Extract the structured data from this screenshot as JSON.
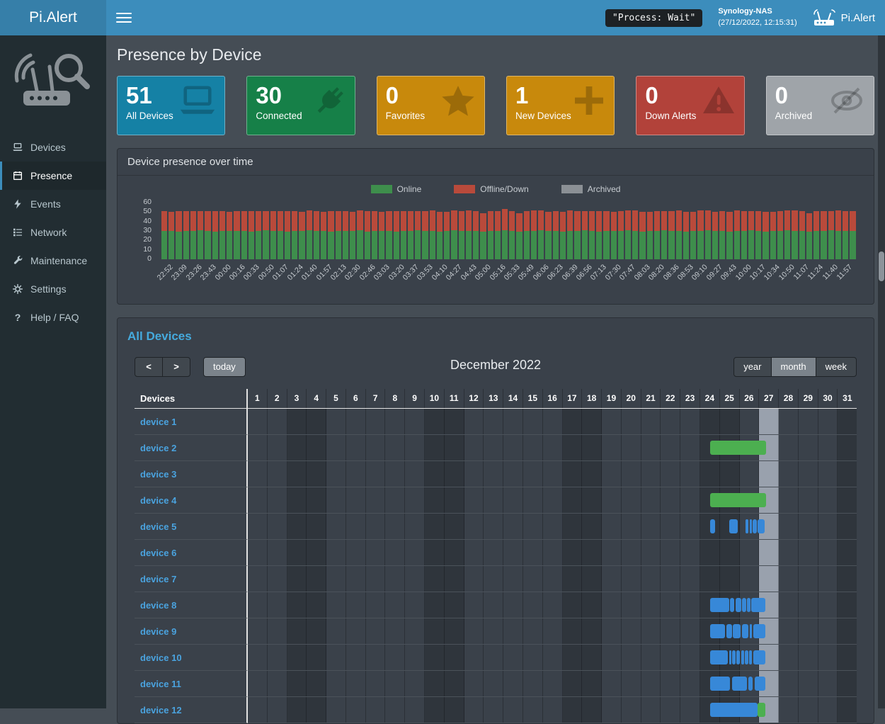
{
  "header": {
    "brand": "Pi.Alert",
    "process_status": "\"Process: Wait\"",
    "nas_name": "Synology-NAS",
    "nas_time": "(27/12/2022, 12:15:31)",
    "app_name": "Pi.Alert"
  },
  "sidebar": {
    "items": [
      {
        "label": "Devices"
      },
      {
        "label": "Presence"
      },
      {
        "label": "Events"
      },
      {
        "label": "Network"
      },
      {
        "label": "Maintenance"
      },
      {
        "label": "Settings"
      },
      {
        "label": "Help / FAQ"
      }
    ],
    "active_item": "Presence"
  },
  "page": {
    "title": "Presence by Device"
  },
  "cards": [
    {
      "value": "51",
      "label": "All Devices",
      "color": "#1581a5"
    },
    {
      "value": "30",
      "label": "Connected",
      "color": "#168048"
    },
    {
      "value": "0",
      "label": "Favorites",
      "color": "#c8890c"
    },
    {
      "value": "1",
      "label": "New Devices",
      "color": "#c8890c"
    },
    {
      "value": "0",
      "label": "Down Alerts",
      "color": "#b2423a"
    },
    {
      "value": "0",
      "label": "Archived",
      "color": "#9fa4a9"
    }
  ],
  "chart_data": {
    "type": "stacked-bar",
    "title": "Device presence over time",
    "ylim": [
      0,
      60
    ],
    "y_ticks": [
      0,
      10,
      20,
      30,
      40,
      50,
      60
    ],
    "legend": [
      {
        "name": "Online",
        "color": "#3e8e4c"
      },
      {
        "name": "Offline/Down",
        "color": "#b94a3b"
      },
      {
        "name": "Archived",
        "color": "#8b9095"
      }
    ],
    "x_labels": [
      "22:52",
      "23:09",
      "23:26",
      "23:43",
      "00:00",
      "00:16",
      "00:33",
      "00:50",
      "01:07",
      "01:24",
      "01:40",
      "01:57",
      "02:13",
      "02:30",
      "02:46",
      "03:03",
      "03:20",
      "03:37",
      "03:53",
      "04:10",
      "04:27",
      "04:43",
      "05:00",
      "05:16",
      "05:33",
      "05:49",
      "06:06",
      "06:23",
      "06:39",
      "06:56",
      "07:13",
      "07:30",
      "07:47",
      "08:03",
      "08:20",
      "08:36",
      "08:53",
      "09:10",
      "09:27",
      "09:43",
      "10:00",
      "10:17",
      "10:34",
      "10:50",
      "11:07",
      "11:24",
      "11:40",
      "11:57"
    ],
    "series": [
      {
        "name": "Online",
        "color": "#3e8e4c",
        "values": [
          30,
          30,
          29,
          30,
          30,
          31,
          30,
          29,
          30,
          30,
          30,
          30,
          29,
          30,
          31,
          30,
          30,
          29,
          30,
          30,
          31,
          30,
          30,
          29,
          30,
          30,
          30,
          31,
          29,
          30,
          30,
          30,
          29,
          30,
          30,
          31,
          30,
          30,
          29,
          30,
          31,
          30,
          30,
          30,
          29,
          30,
          30,
          31,
          30,
          29,
          30,
          30,
          31,
          30,
          30,
          29,
          30,
          30,
          31,
          30,
          29,
          30,
          30,
          30,
          31,
          30,
          29,
          30,
          30,
          31,
          30,
          30,
          29,
          30,
          30,
          31,
          30,
          30,
          29,
          30,
          30,
          31,
          30,
          29,
          30,
          30,
          31,
          30,
          30,
          29,
          30,
          30,
          31,
          30,
          30,
          30
        ]
      },
      {
        "name": "Offline/Down",
        "color": "#b94a3b",
        "values": [
          21,
          20,
          22,
          21,
          21,
          20,
          21,
          22,
          21,
          20,
          21,
          21,
          22,
          21,
          20,
          21,
          21,
          22,
          21,
          20,
          21,
          21,
          20,
          22,
          21,
          21,
          20,
          21,
          22,
          21,
          20,
          21,
          22,
          21,
          21,
          20,
          21,
          22,
          21,
          20,
          21,
          21,
          22,
          21,
          20,
          21,
          21,
          22,
          21,
          20,
          21,
          22,
          21,
          20,
          21,
          21,
          22,
          21,
          20,
          21,
          22,
          21,
          20,
          21,
          21,
          22,
          21,
          20,
          21,
          20,
          21,
          22,
          21,
          20,
          22,
          21,
          20,
          21,
          21,
          22,
          21,
          20,
          21,
          21,
          20,
          21,
          21,
          22,
          21,
          20,
          21,
          21,
          20,
          22,
          21,
          21
        ]
      },
      {
        "name": "Archived",
        "color": "#8b9095",
        "values": []
      }
    ]
  },
  "calendar": {
    "panel_title": "All Devices",
    "toolbar": {
      "prev": "<",
      "next": ">",
      "today": "today",
      "month_title": "December 2022",
      "views": [
        "year",
        "month",
        "week"
      ],
      "active_view": "month"
    },
    "table_header": "Devices",
    "days": [
      1,
      2,
      3,
      4,
      5,
      6,
      7,
      8,
      9,
      10,
      11,
      12,
      13,
      14,
      15,
      16,
      17,
      18,
      19,
      20,
      21,
      22,
      23,
      24,
      25,
      26,
      27,
      28,
      29,
      30,
      31
    ],
    "weekend_days": [
      3,
      4,
      10,
      11,
      17,
      18,
      24,
      25,
      31
    ],
    "today_day": 27,
    "event_colors": {
      "green": "#4caf50",
      "blue": "#3788d8"
    },
    "devices": [
      {
        "name": "device 1",
        "events": []
      },
      {
        "name": "device 2",
        "events": [
          {
            "start": 24.55,
            "end": 27.4,
            "color": "green"
          }
        ]
      },
      {
        "name": "device 3",
        "events": []
      },
      {
        "name": "device 4",
        "events": [
          {
            "start": 24.55,
            "end": 27.4,
            "color": "green"
          }
        ]
      },
      {
        "name": "device 5",
        "events": [
          {
            "start": 24.55,
            "end": 24.8,
            "color": "blue"
          },
          {
            "start": 25.5,
            "end": 25.95,
            "color": "blue"
          },
          {
            "start": 26.35,
            "end": 26.5,
            "color": "blue"
          },
          {
            "start": 26.55,
            "end": 26.65,
            "color": "blue"
          },
          {
            "start": 26.7,
            "end": 26.92,
            "color": "blue"
          },
          {
            "start": 26.97,
            "end": 27.3,
            "color": "blue"
          }
        ]
      },
      {
        "name": "device 6",
        "events": []
      },
      {
        "name": "device 7",
        "events": []
      },
      {
        "name": "device 8",
        "events": [
          {
            "start": 24.55,
            "end": 25.5,
            "color": "blue"
          },
          {
            "start": 25.55,
            "end": 25.78,
            "color": "blue"
          },
          {
            "start": 25.83,
            "end": 26.12,
            "color": "blue"
          },
          {
            "start": 26.17,
            "end": 26.38,
            "color": "blue"
          },
          {
            "start": 26.43,
            "end": 26.58,
            "color": "blue"
          },
          {
            "start": 26.63,
            "end": 27.35,
            "color": "blue"
          }
        ]
      },
      {
        "name": "device 9",
        "events": [
          {
            "start": 24.55,
            "end": 25.3,
            "color": "blue"
          },
          {
            "start": 25.35,
            "end": 25.65,
            "color": "blue"
          },
          {
            "start": 25.7,
            "end": 26.1,
            "color": "blue"
          },
          {
            "start": 26.15,
            "end": 26.5,
            "color": "blue"
          },
          {
            "start": 26.55,
            "end": 26.67,
            "color": "blue"
          },
          {
            "start": 26.72,
            "end": 27.35,
            "color": "blue"
          }
        ]
      },
      {
        "name": "device 10",
        "events": [
          {
            "start": 24.55,
            "end": 25.45,
            "color": "blue"
          },
          {
            "start": 25.5,
            "end": 25.62,
            "color": "blue"
          },
          {
            "start": 25.67,
            "end": 25.82,
            "color": "blue"
          },
          {
            "start": 25.87,
            "end": 26.07,
            "color": "blue"
          },
          {
            "start": 26.12,
            "end": 26.27,
            "color": "blue"
          },
          {
            "start": 26.32,
            "end": 26.47,
            "color": "blue"
          },
          {
            "start": 26.52,
            "end": 26.67,
            "color": "blue"
          },
          {
            "start": 26.72,
            "end": 27.35,
            "color": "blue"
          }
        ]
      },
      {
        "name": "device 11",
        "events": [
          {
            "start": 24.55,
            "end": 25.55,
            "color": "blue"
          },
          {
            "start": 25.65,
            "end": 26.4,
            "color": "blue"
          },
          {
            "start": 26.5,
            "end": 26.7,
            "color": "blue"
          },
          {
            "start": 26.8,
            "end": 27.35,
            "color": "blue"
          }
        ]
      },
      {
        "name": "device 12",
        "events": [
          {
            "start": 24.55,
            "end": 26.95,
            "color": "blue"
          },
          {
            "start": 26.95,
            "end": 27.35,
            "color": "green"
          }
        ]
      }
    ]
  }
}
